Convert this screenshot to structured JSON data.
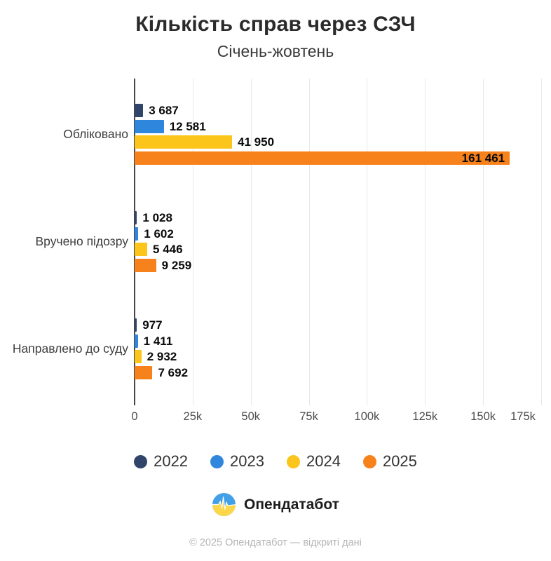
{
  "title": "Кількість справ через СЗЧ",
  "subtitle": "Січень-жовтень",
  "chart_data": {
    "type": "bar",
    "orientation": "horizontal",
    "title": "Кількість справ через СЗЧ",
    "subtitle": "Січень-жовтень",
    "categories": [
      "Обліковано",
      "Вручено підозру",
      "Направлено до суду"
    ],
    "series": [
      {
        "name": "2022",
        "color": "#304569",
        "values": [
          3687,
          1028,
          977
        ],
        "labels": [
          "3 687",
          "1 028",
          "977"
        ]
      },
      {
        "name": "2023",
        "color": "#2f86dd",
        "values": [
          12581,
          1602,
          1411
        ],
        "labels": [
          "12 581",
          "1 602",
          "1 411"
        ]
      },
      {
        "name": "2024",
        "color": "#fcc51b",
        "values": [
          41950,
          5446,
          2932
        ],
        "labels": [
          "41 950",
          "5 446",
          "2 932"
        ]
      },
      {
        "name": "2025",
        "color": "#f7821b",
        "values": [
          161461,
          9259,
          7692
        ],
        "labels": [
          "161 461",
          "9 259",
          "7 692"
        ]
      }
    ],
    "x_ticks": [
      "0",
      "25k",
      "50k",
      "75k",
      "100k",
      "125k",
      "150k",
      "175k"
    ],
    "x_tick_values": [
      0,
      25000,
      50000,
      75000,
      100000,
      125000,
      150000,
      175000
    ],
    "x_max": 175000,
    "grid": true,
    "legend_position": "bottom"
  },
  "footer": {
    "brand": "Опендатабот",
    "copyright": "© 2025 Опендатабот — відкриті дані"
  },
  "logo": {
    "name": "opendatabot-logo",
    "blue": "#41a0e8",
    "yellow": "#fdd64a",
    "pulse": "#ffffff"
  }
}
